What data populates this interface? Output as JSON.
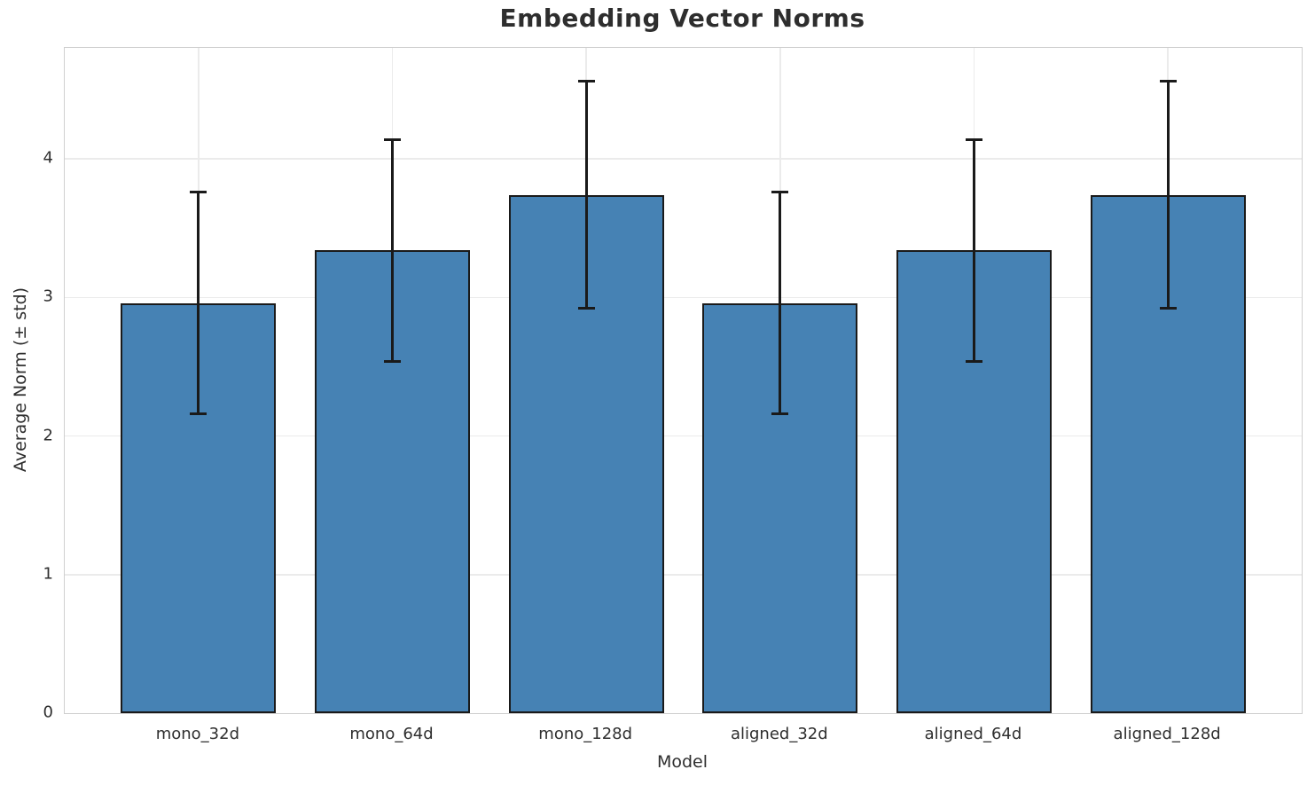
{
  "chart_data": {
    "type": "bar",
    "title": "Embedding Vector Norms",
    "xlabel": "Model",
    "ylabel": "Average Norm (± std)",
    "categories": [
      "mono_32d",
      "mono_64d",
      "mono_128d",
      "aligned_32d",
      "aligned_64d",
      "aligned_128d"
    ],
    "values": [
      2.96,
      3.34,
      3.74,
      2.96,
      3.34,
      3.74
    ],
    "errors": [
      0.8,
      0.8,
      0.82,
      0.8,
      0.8,
      0.82
    ],
    "yticks": [
      0,
      1,
      2,
      3,
      4
    ],
    "ylim": [
      0,
      4.8
    ],
    "xlim": [
      -0.69,
      5.69
    ],
    "bar_width": 0.8,
    "grid": true,
    "legend": false,
    "error_caps": true,
    "bar_color": "#4682B4",
    "bar_edge_color": "#1a1a1a",
    "error_color": "#1a1a1a",
    "grid_color": "#ebebeb",
    "spine_color": "#cfcfcf",
    "text_color": "#2e2e2e",
    "background_color": "#ffffff"
  }
}
